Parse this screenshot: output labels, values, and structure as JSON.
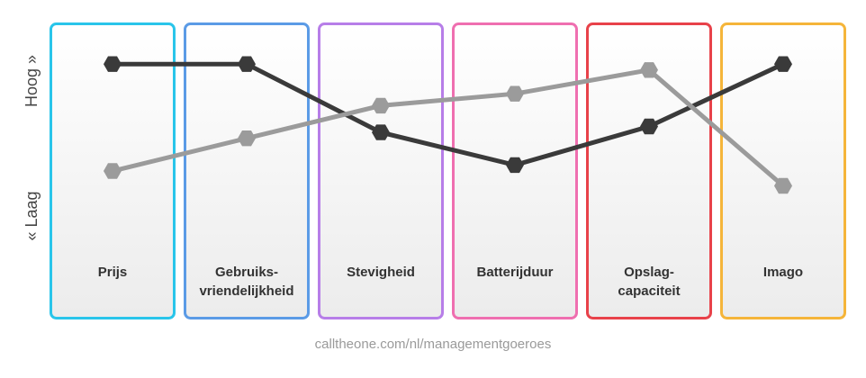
{
  "chart_data": {
    "type": "line",
    "categories": [
      "Prijs",
      "Gebruiks-\nvriendelijkheid",
      "Stevigheid",
      "Batterijduur",
      "Opslag-\ncapaciteit",
      "Imago"
    ],
    "category_colors": [
      "#29c5ea",
      "#5b9be6",
      "#b77ee8",
      "#ef6fb0",
      "#e8424a",
      "#f5b53a"
    ],
    "series": [
      {
        "color": "#3a3a3a",
        "values": [
          8.6,
          8.6,
          6.3,
          5.2,
          6.5,
          8.6
        ]
      },
      {
        "color": "#9b9b9b",
        "values": [
          5.0,
          6.1,
          7.2,
          7.6,
          8.4,
          4.5
        ]
      }
    ],
    "ylim": [
      0,
      10
    ],
    "y_low_label": "« Laag",
    "y_high_label": "Hoog »",
    "source": "calltheone.com/nl/managementgoeroes"
  }
}
